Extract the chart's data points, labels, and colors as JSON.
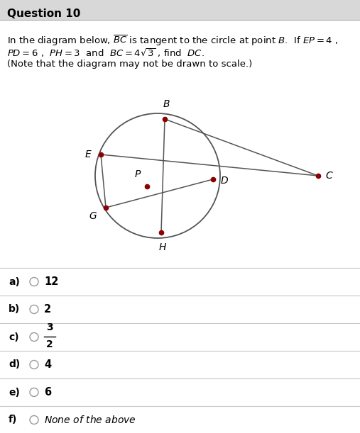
{
  "title": "Question 10",
  "title_bg": "#d8d8d8",
  "fig_bg": "#ffffff",
  "line_color": "#555555",
  "dot_color": "#8b0000",
  "label_color": "#000000",
  "separator_color": "#c8c8c8",
  "answers": [
    {
      "label": "a)",
      "value": "12",
      "is_fraction": false,
      "is_italic": false
    },
    {
      "label": "b)",
      "value": "2",
      "is_fraction": false,
      "is_italic": false
    },
    {
      "label": "c)",
      "value": "",
      "is_fraction": true,
      "is_italic": false,
      "num": "3",
      "den": "2"
    },
    {
      "label": "d)",
      "value": "4",
      "is_fraction": false,
      "is_italic": false
    },
    {
      "label": "e)",
      "value": "6",
      "is_fraction": false,
      "is_italic": false
    },
    {
      "label": "f)",
      "value": "None of the above",
      "is_fraction": false,
      "is_italic": true
    }
  ]
}
